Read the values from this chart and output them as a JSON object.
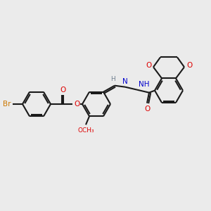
{
  "bg_color": "#ebebeb",
  "bond_color": "#1a1a1a",
  "O_color": "#dd0000",
  "N_color": "#0000cc",
  "Br_color": "#cc7700",
  "H_color": "#708090",
  "lw": 1.5,
  "fs": 7.5,
  "figsize": [
    3.0,
    3.0
  ],
  "dpi": 100,
  "xlim": [
    0,
    300
  ],
  "ylim": [
    0,
    300
  ]
}
